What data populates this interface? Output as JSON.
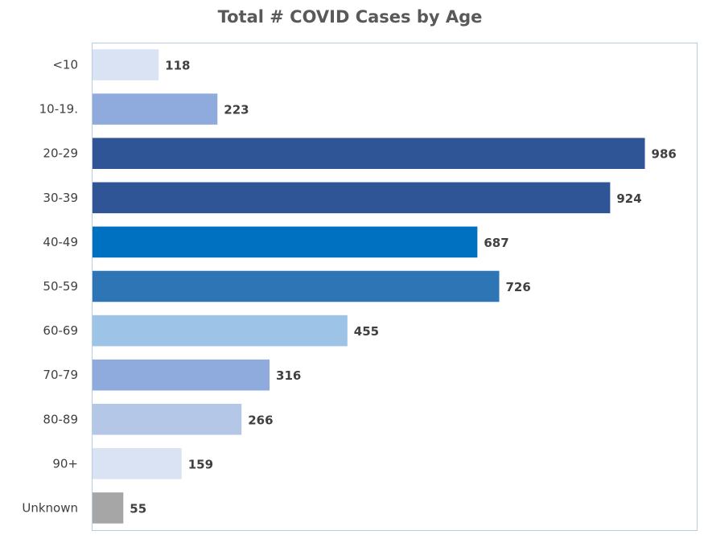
{
  "chart_data": {
    "type": "bar",
    "orientation": "horizontal",
    "title": "Total # COVID Cases by Age",
    "xlabel": "",
    "ylabel": "",
    "categories": [
      "<10",
      "10-19.",
      "20-29",
      "30-39",
      "40-49",
      "50-59",
      "60-69",
      "70-79",
      "80-89",
      "90+",
      "Unknown"
    ],
    "values": [
      118,
      223,
      986,
      924,
      687,
      726,
      455,
      316,
      266,
      159,
      55
    ],
    "colors": [
      "#dae3f3",
      "#8faadc",
      "#2f5597",
      "#2f5597",
      "#0070c0",
      "#2e75b6",
      "#9dc3e6",
      "#8faadc",
      "#b4c7e7",
      "#dae3f3",
      "#a6a6a6"
    ],
    "xlim": [
      0,
      1080
    ],
    "grid": false,
    "legend": "none",
    "data_labels": true
  }
}
